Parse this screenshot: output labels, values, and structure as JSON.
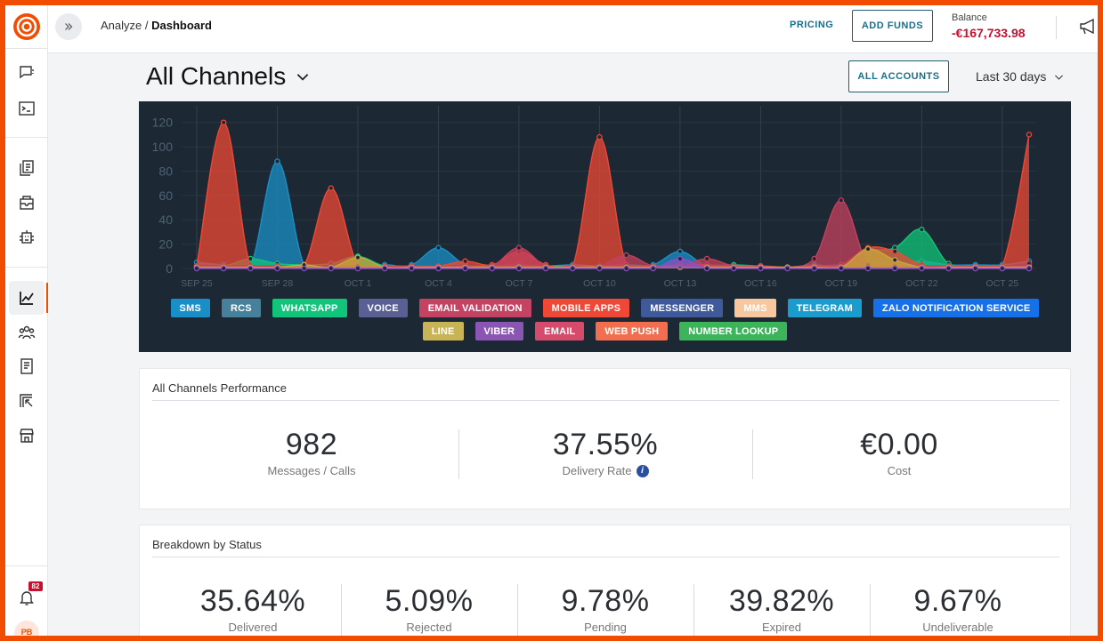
{
  "breadcrumb": {
    "section": "Analyze",
    "separator": " / ",
    "current": "Dashboard"
  },
  "topbar": {
    "pricing_label": "PRICING",
    "add_funds_label": "ADD FUNDS",
    "balance_label": "Balance",
    "balance_value": "-€167,733.98"
  },
  "header": {
    "title": "All Channels",
    "accounts_button": "ALL ACCOUNTS",
    "date_range": "Last 30 days"
  },
  "sidebar": {
    "notification_count": "82",
    "avatar_initials": "PB",
    "items": [
      "conversations",
      "console",
      "templates",
      "campaigns",
      "automation",
      "analyze",
      "people",
      "documents",
      "exports",
      "marketplace",
      "notifications"
    ]
  },
  "chart_data": {
    "type": "area",
    "yticks": [
      "0",
      "20",
      "40",
      "60",
      "80",
      "100",
      "120"
    ],
    "ylim": [
      0,
      130
    ],
    "x": [
      "SEP 25",
      "SEP 26",
      "SEP 27",
      "SEP 28",
      "SEP 29",
      "SEP 30",
      "OCT 1",
      "OCT 2",
      "OCT 3",
      "OCT 4",
      "OCT 5",
      "OCT 6",
      "OCT 7",
      "OCT 8",
      "OCT 9",
      "OCT 10",
      "OCT 11",
      "OCT 12",
      "OCT 13",
      "OCT 14",
      "OCT 15",
      "OCT 16",
      "OCT 17",
      "OCT 18",
      "OCT 19",
      "OCT 20",
      "OCT 21",
      "OCT 22",
      "OCT 23",
      "OCT 24",
      "OCT 25",
      "OCT 26"
    ],
    "xtick_labels": [
      "SEP 25",
      "SEP 28",
      "OCT 1",
      "OCT 4",
      "OCT 7",
      "OCT 10",
      "OCT 13",
      "OCT 16",
      "OCT 19",
      "OCT 22",
      "OCT 25"
    ],
    "series": [
      {
        "name": "SMS",
        "color": "#1a8fc7",
        "values": [
          5,
          3,
          2,
          88,
          3,
          2,
          2,
          3,
          3,
          17,
          3,
          2,
          2,
          2,
          3,
          2,
          2,
          3,
          14,
          2,
          2,
          2,
          1,
          2,
          3,
          4,
          4,
          6,
          3,
          3,
          3,
          6
        ]
      },
      {
        "name": "WHATSAPP",
        "color": "#10c47a",
        "values": [
          2,
          2,
          8,
          4,
          3,
          4,
          10,
          2,
          2,
          2,
          2,
          2,
          3,
          2,
          2,
          2,
          3,
          2,
          2,
          2,
          3,
          2,
          1,
          3,
          2,
          14,
          17,
          32,
          4,
          2,
          2,
          2
        ]
      },
      {
        "name": "MOBILE APPS",
        "color": "#ef4836",
        "values": [
          2,
          120,
          2,
          2,
          3,
          66,
          3,
          2,
          2,
          2,
          6,
          3,
          14,
          3,
          2,
          108,
          3,
          2,
          3,
          3,
          2,
          2,
          1,
          2,
          3,
          17,
          14,
          3,
          2,
          2,
          2,
          110
        ]
      },
      {
        "name": "EMAIL VALIDATION",
        "color": "#c4405f",
        "values": [
          2,
          2,
          2,
          2,
          2,
          2,
          2,
          2,
          2,
          2,
          2,
          2,
          17,
          2,
          2,
          2,
          11,
          2,
          2,
          8,
          2,
          2,
          1,
          8,
          56,
          3,
          2,
          2,
          2,
          2,
          2,
          4
        ]
      },
      {
        "name": "LINE",
        "color": "#c8a53c",
        "values": [
          1,
          1,
          1,
          1,
          3,
          1,
          9,
          1,
          1,
          1,
          1,
          1,
          1,
          1,
          1,
          1,
          1,
          1,
          1,
          1,
          1,
          1,
          1,
          1,
          1,
          16,
          7,
          1,
          1,
          1,
          1,
          1
        ]
      },
      {
        "name": "VIBER",
        "color": "#8a4fc4",
        "values": [
          0,
          0,
          0,
          0,
          0,
          0,
          0,
          0,
          0,
          0,
          0,
          0,
          0,
          0,
          0,
          0,
          0,
          0,
          8,
          0,
          0,
          0,
          0,
          0,
          0,
          0,
          0,
          0,
          0,
          0,
          0,
          0
        ]
      }
    ],
    "legend": [
      {
        "label": "SMS",
        "color": "#1a8fc7"
      },
      {
        "label": "RCS",
        "color": "#46809a"
      },
      {
        "label": "WHATSAPP",
        "color": "#10c47a"
      },
      {
        "label": "VOICE",
        "color": "#5a6094"
      },
      {
        "label": "EMAIL VALIDATION",
        "color": "#c44362"
      },
      {
        "label": "MOBILE APPS",
        "color": "#ef4836"
      },
      {
        "label": "MESSENGER",
        "color": "#3f5a9a"
      },
      {
        "label": "MMS",
        "color": "#f7c79f"
      },
      {
        "label": "TELEGRAM",
        "color": "#1a9ccf"
      },
      {
        "label": "ZALO NOTIFICATION SERVICE",
        "color": "#1670e8"
      },
      {
        "label": "LINE",
        "color": "#c8b355"
      },
      {
        "label": "VIBER",
        "color": "#8b55b4"
      },
      {
        "label": "EMAIL",
        "color": "#d64a6b"
      },
      {
        "label": "WEB PUSH",
        "color": "#f26e4f"
      },
      {
        "label": "NUMBER LOOKUP",
        "color": "#3cb45a"
      }
    ]
  },
  "performance": {
    "title": "All Channels Performance",
    "stats": [
      {
        "value": "982",
        "label": "Messages / Calls"
      },
      {
        "value": "37.55%",
        "label": "Delivery Rate"
      },
      {
        "value": "€0.00",
        "label": "Cost"
      }
    ]
  },
  "breakdown": {
    "title": "Breakdown by Status",
    "stats": [
      {
        "value": "35.64%",
        "label": "Delivered"
      },
      {
        "value": "5.09%",
        "label": "Rejected"
      },
      {
        "value": "9.78%",
        "label": "Pending"
      },
      {
        "value": "39.82%",
        "label": "Expired"
      },
      {
        "value": "9.67%",
        "label": "Undeliverable"
      }
    ]
  }
}
